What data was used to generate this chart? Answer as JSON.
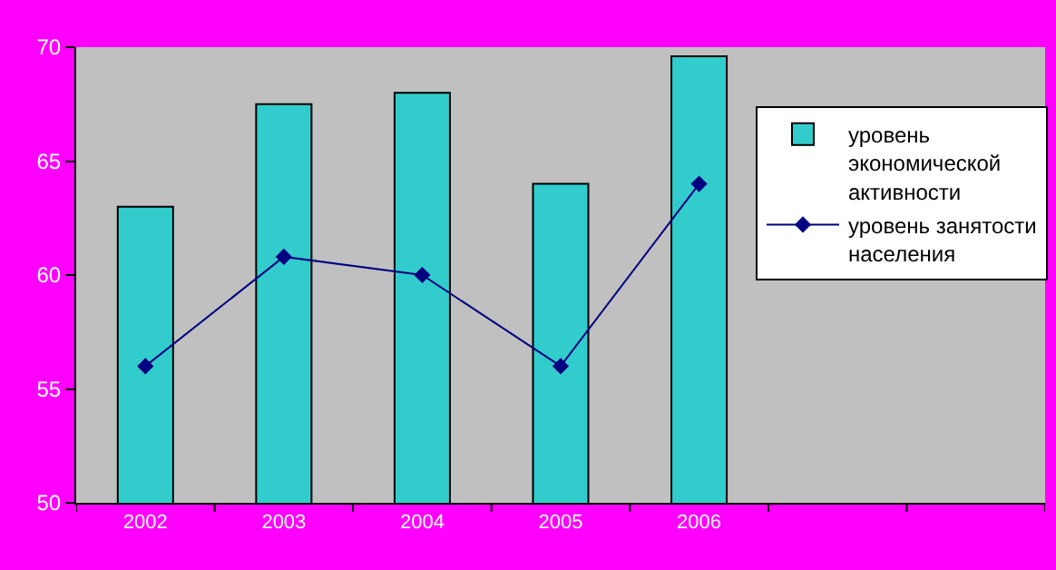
{
  "chart_data": {
    "type": "bar",
    "categories": [
      "2002",
      "2003",
      "2004",
      "2005",
      "2006",
      null,
      null
    ],
    "series": [
      {
        "name": "уровень экономической активности",
        "color": "#33cccc",
        "values": [
          63,
          67.5,
          68,
          64,
          69.6,
          null,
          null
        ]
      },
      {
        "name": "уровень занятости населения",
        "type": "line",
        "color": "#000080",
        "marker": "diamond",
        "values": [
          56,
          60.8,
          60,
          56,
          64,
          null,
          null
        ]
      }
    ],
    "ylim": [
      50,
      70
    ],
    "yticks": [
      50,
      55,
      60,
      65,
      70
    ],
    "grid": false,
    "legend": "right"
  }
}
